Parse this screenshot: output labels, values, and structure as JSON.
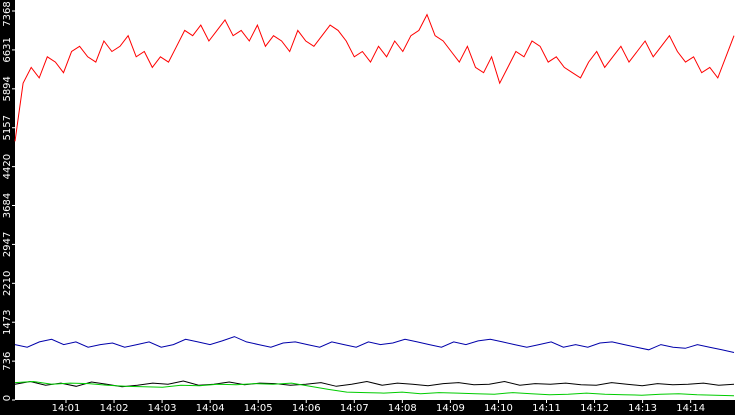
{
  "chart_data": {
    "type": "line",
    "x_tick_labels": [
      "14:01",
      "14:02",
      "14:03",
      "14:04",
      "14:05",
      "14:06",
      "14:07",
      "14:08",
      "14:09",
      "14:10",
      "14:11",
      "14:12",
      "14:13",
      "14:14"
    ],
    "ylim": [
      0,
      7368
    ],
    "yticks": [
      0,
      736,
      1473,
      2210,
      2947,
      3684,
      4420,
      5157,
      5894,
      6631,
      7368
    ],
    "series": [
      {
        "color": "#ff0000",
        "values": [
          4900,
          6000,
          6300,
          6100,
          6500,
          6400,
          6200,
          6600,
          6700,
          6500,
          6400,
          6800,
          6600,
          6700,
          6900,
          6500,
          6600,
          6300,
          6500,
          6400,
          6700,
          7000,
          6900,
          7100,
          6800,
          7000,
          7200,
          6900,
          7000,
          6800,
          7100,
          6700,
          6900,
          6800,
          6600,
          7000,
          6800,
          6700,
          6900,
          7100,
          7000,
          6800,
          6500,
          6600,
          6400,
          6700,
          6500,
          6800,
          6600,
          6900,
          7000,
          7300,
          6900,
          6800,
          6600,
          6400,
          6700,
          6300,
          6200,
          6500,
          6000,
          6300,
          6600,
          6500,
          6800,
          6700,
          6400,
          6500,
          6300,
          6200,
          6100,
          6400,
          6600,
          6300,
          6500,
          6700,
          6400,
          6600,
          6800,
          6500,
          6700,
          6900,
          6600,
          6400,
          6500,
          6200,
          6300,
          6100,
          6500,
          6900
        ]
      },
      {
        "color": "#0000aa",
        "values": [
          1050,
          1000,
          1100,
          1150,
          1050,
          1100,
          1000,
          1050,
          1080,
          1000,
          1050,
          1100,
          1000,
          1050,
          1150,
          1100,
          1050,
          1120,
          1200,
          1100,
          1050,
          1000,
          1080,
          1100,
          1050,
          1000,
          1100,
          1050,
          1000,
          1100,
          1050,
          1080,
          1150,
          1100,
          1050,
          1000,
          1100,
          1050,
          1120,
          1150,
          1100,
          1050,
          1000,
          1050,
          1100,
          1000,
          1050,
          1000,
          1080,
          1100,
          1050,
          1000,
          950,
          1050,
          1000,
          980,
          1050,
          1000,
          950,
          900
        ]
      },
      {
        "color": "#000000",
        "values": [
          300,
          350,
          280,
          320,
          260,
          340,
          300,
          250,
          280,
          320,
          300,
          360,
          280,
          300,
          340,
          290,
          320,
          310,
          280,
          300,
          330,
          260,
          300,
          350,
          280,
          320,
          300,
          270,
          310,
          330,
          290,
          300,
          350,
          280,
          310,
          300,
          320,
          290,
          280,
          330,
          300,
          270,
          310,
          290,
          300,
          320,
          280,
          300
        ]
      },
      {
        "color": "#00cc00",
        "values": [
          330,
          350,
          300,
          320,
          310,
          280,
          260,
          250,
          240,
          280,
          270,
          300,
          290,
          310,
          300,
          320,
          260,
          200,
          150,
          140,
          130,
          150,
          120,
          140,
          130,
          120,
          110,
          140,
          120,
          100,
          110,
          130,
          110,
          100,
          90,
          110,
          120,
          100,
          90,
          80
        ]
      }
    ]
  }
}
